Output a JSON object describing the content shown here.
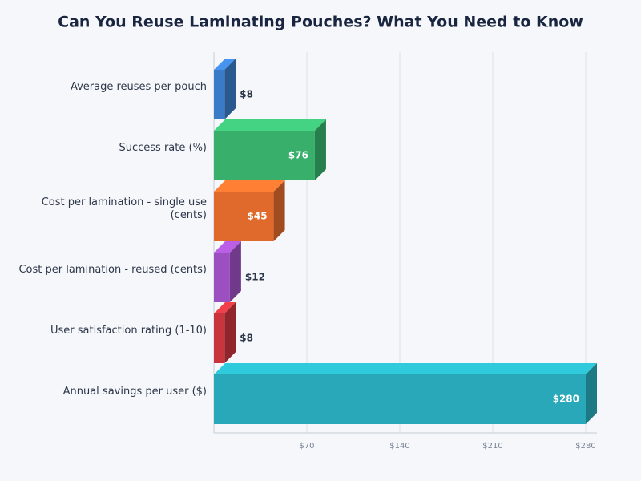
{
  "chart_data": {
    "type": "bar",
    "orientation": "horizontal",
    "title": "Can You Reuse Laminating Pouches? What You Need to Know",
    "categories": [
      "Average reuses per pouch",
      "Success rate (%)",
      "Cost per lamination - single use (cents)",
      "Cost per lamination - reused (cents)",
      "User satisfaction rating (1-10)",
      "Annual savings per user ($)"
    ],
    "values": [
      8,
      76,
      45,
      12,
      8,
      280
    ],
    "value_labels": [
      "$8",
      "$76",
      "$45",
      "$12",
      "$8",
      "$280"
    ],
    "colors": [
      "#3a7bc8",
      "#38b06c",
      "#e06a2c",
      "#9b4fc0",
      "#c8353d",
      "#28a8b8"
    ],
    "xlim": [
      0,
      280
    ],
    "xticks": [
      {
        "value": 70,
        "label": "$70"
      },
      {
        "value": 140,
        "label": "$140"
      },
      {
        "value": 210,
        "label": "$210"
      },
      {
        "value": 280,
        "label": "$280"
      }
    ],
    "grid": true
  }
}
